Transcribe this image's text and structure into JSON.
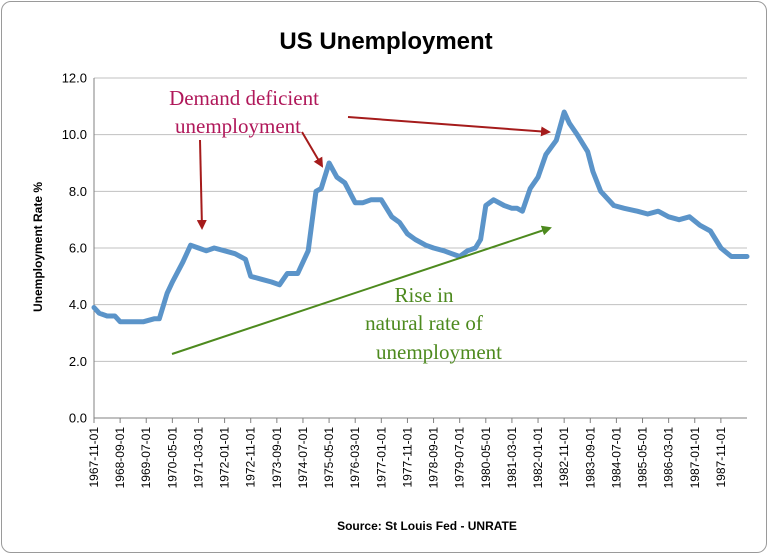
{
  "chart_data": {
    "type": "line",
    "title": "US Unemployment",
    "ylabel": "Unemployment Rate %",
    "xlabel": "Source: St Louis Fed - UNRATE",
    "ylim": [
      0,
      12
    ],
    "yticks": [
      "0.0",
      "2.0",
      "4.0",
      "6.0",
      "8.0",
      "10.0",
      "12.0"
    ],
    "grid": "horizontal",
    "x_range": [
      "1967-11-01",
      "1988-09-01"
    ],
    "xticks": [
      "1967-11-01",
      "1968-09-01",
      "1969-07-01",
      "1970-05-01",
      "1971-03-01",
      "1972-01-01",
      "1972-11-01",
      "1973-09-01",
      "1974-07-01",
      "1975-05-01",
      "1976-03-01",
      "1977-01-01",
      "1977-11-01",
      "1978-09-01",
      "1979-07-01",
      "1980-05-01",
      "1981-03-01",
      "1982-01-01",
      "1982-11-01",
      "1983-09-01",
      "1984-07-01",
      "1985-05-01",
      "1986-03-01",
      "1987-01-01",
      "1987-11-01"
    ],
    "colors": {
      "series": "#5b94c9",
      "red_annotation": "#a51b1b",
      "green_annotation": "#4d8a1e",
      "grid": "#c0c0c0"
    },
    "series": [
      {
        "x": [
          "1967-11-01",
          "1968-01-01",
          "1968-04-01",
          "1968-07-01",
          "1968-09-01",
          "1969-01-01",
          "1969-06-01",
          "1969-10-01",
          "1969-12-01",
          "1970-03-01",
          "1970-05-01",
          "1970-09-01",
          "1970-12-01",
          "1971-03-01",
          "1971-06-01",
          "1971-09-01",
          "1972-01-01",
          "1972-05-01",
          "1972-09-01",
          "1972-11-01",
          "1973-03-01",
          "1973-07-01",
          "1973-10-01",
          "1974-01-01",
          "1974-05-01",
          "1974-09-01",
          "1974-12-01",
          "1975-02-01",
          "1975-05-01",
          "1975-08-01",
          "1975-11-01",
          "1976-03-01",
          "1976-06-01",
          "1976-09-01",
          "1977-01-01",
          "1977-05-01",
          "1977-08-01",
          "1977-11-01",
          "1978-02-01",
          "1978-06-01",
          "1978-09-01",
          "1979-01-01",
          "1979-04-01",
          "1979-07-01",
          "1979-10-01",
          "1980-01-01",
          "1980-03-01",
          "1980-05-01",
          "1980-08-01",
          "1980-12-01",
          "1981-03-01",
          "1981-05-01",
          "1981-07-01",
          "1981-10-01",
          "1982-01-01",
          "1982-04-01",
          "1982-08-01",
          "1982-11-01",
          "1983-01-01",
          "1983-04-01",
          "1983-08-01",
          "1983-10-01",
          "1984-01-01",
          "1984-06-01",
          "1984-10-01",
          "1985-03-01",
          "1985-07-01",
          "1985-11-01",
          "1986-03-01",
          "1986-07-01",
          "1986-11-01",
          "1987-03-01",
          "1987-07-01",
          "1987-11-01",
          "1988-03-01",
          "1988-06-01",
          "1988-09-01"
        ],
        "values": [
          3.9,
          3.7,
          3.6,
          3.6,
          3.4,
          3.4,
          3.4,
          3.5,
          3.5,
          4.4,
          4.8,
          5.5,
          6.1,
          6.0,
          5.9,
          6.0,
          5.9,
          5.8,
          5.6,
          5.0,
          4.9,
          4.8,
          4.7,
          5.1,
          5.1,
          5.9,
          8.0,
          8.1,
          9.0,
          8.5,
          8.3,
          7.6,
          7.6,
          7.7,
          7.7,
          7.1,
          6.9,
          6.5,
          6.3,
          6.1,
          6.0,
          5.9,
          5.8,
          5.7,
          5.9,
          6.0,
          6.3,
          7.5,
          7.7,
          7.5,
          7.4,
          7.4,
          7.3,
          8.1,
          8.5,
          9.3,
          9.8,
          10.8,
          10.4,
          10.0,
          9.4,
          8.7,
          8.0,
          7.5,
          7.4,
          7.3,
          7.2,
          7.3,
          7.1,
          7.0,
          7.1,
          6.8,
          6.6,
          6.0,
          5.7,
          5.7,
          5.7
        ]
      }
    ],
    "annotations": {
      "demand_line1": "Demand deficient",
      "demand_line2": "unemployment",
      "rise_line1": "Rise in",
      "rise_line2": "natural rate of",
      "rise_line3": "unemployment"
    }
  }
}
